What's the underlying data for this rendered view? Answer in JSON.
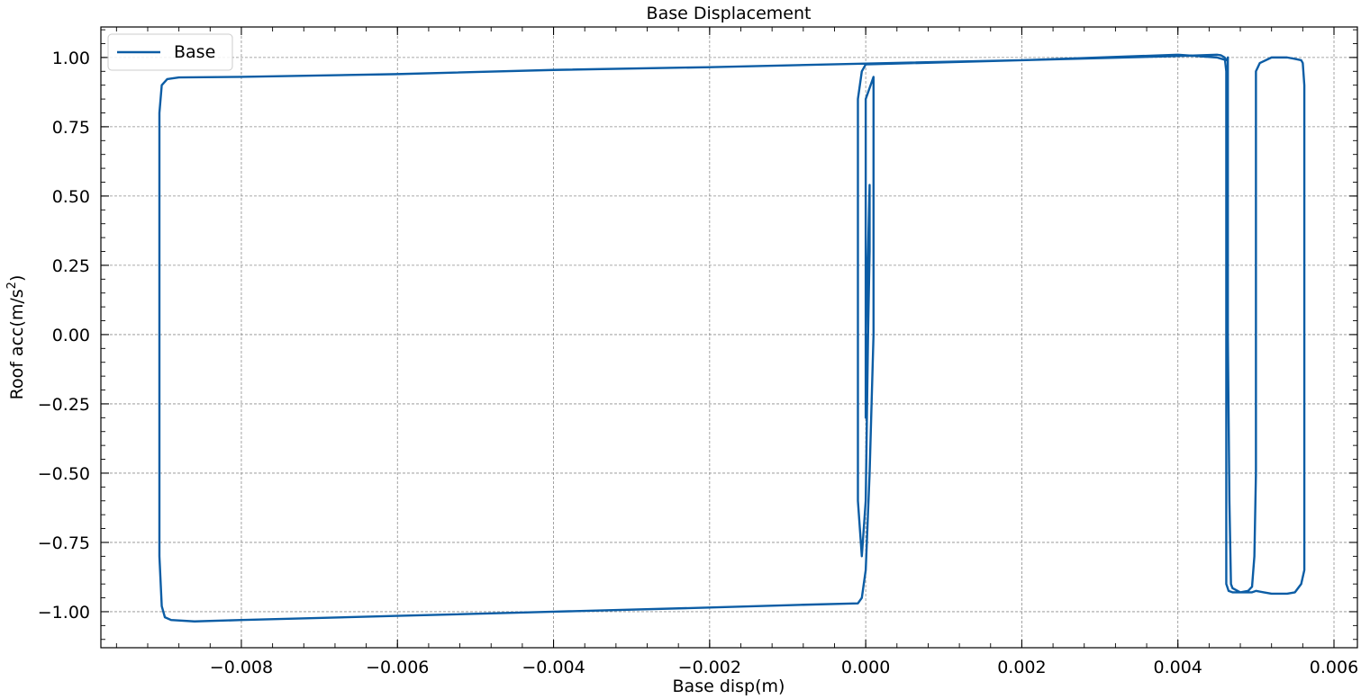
{
  "chart_data": {
    "type": "line",
    "title": "Base Displacement",
    "xlabel": "Base disp(m)",
    "ylabel_main": "Roof acc(m/s",
    "ylabel_sup": "2",
    "ylabel_close": ")",
    "xlim": [
      -0.0098,
      0.0063
    ],
    "ylim": [
      -1.13,
      1.11
    ],
    "grid": true,
    "legend_position": "top-left",
    "color": "#0c5da5",
    "xticks": [
      -0.008,
      -0.006,
      -0.004,
      -0.002,
      0.0,
      0.002,
      0.004,
      0.006
    ],
    "xtick_labels": [
      "−0.008",
      "−0.006",
      "−0.004",
      "−0.002",
      "0.000",
      "0.002",
      "0.004",
      "0.006"
    ],
    "yticks": [
      1.0,
      0.75,
      0.5,
      0.25,
      0.0,
      -0.25,
      -0.5,
      -0.75,
      -1.0
    ],
    "ytick_labels": [
      "1.00",
      "0.75",
      "0.50",
      "0.25",
      "0.00",
      "−0.25",
      "−0.50",
      "−0.75",
      "−1.00"
    ],
    "series": [
      {
        "name": "Base",
        "x": [
          0.0,
          0.0,
          0.0,
          0.0001,
          0.0001,
          0.0001,
          0.0001,
          5e-05,
          0.0,
          -5e-05,
          -0.0001,
          -0.0008,
          -0.002,
          -0.004,
          -0.006,
          -0.008,
          -0.0086,
          -0.0089,
          -0.00898,
          -0.00902,
          -0.00905,
          -0.00905,
          -0.00905,
          -0.00902,
          -0.00895,
          -0.0088,
          -0.008,
          -0.006,
          -0.004,
          -0.002,
          0.0,
          0.002,
          0.004,
          0.0045,
          0.00455,
          0.0046,
          0.00462,
          0.00462,
          0.00462,
          0.00462,
          0.00462,
          0.00465,
          0.0047,
          0.0048,
          0.0049,
          0.00495,
          0.00498,
          0.005,
          0.005,
          0.005,
          0.005,
          0.005,
          0.00505,
          0.0052,
          0.0054,
          0.0055,
          0.00558,
          0.0056,
          0.00562,
          0.00562,
          0.00562,
          0.00562,
          0.00562,
          0.00558,
          0.0055,
          0.0054,
          0.0052,
          0.0051,
          0.005,
          0.00495,
          0.0048,
          0.0047,
          0.00468,
          0.00466,
          0.00464,
          0.00464,
          0.00464,
          0.00464,
          0.00464,
          0.00462,
          0.0045,
          0.004,
          0.002,
          0.0,
          -5e-05,
          -0.0001,
          -0.0001,
          -0.0001,
          -5e-05,
          0.0,
          3e-05,
          5e-05,
          5e-05,
          3e-05,
          0.0,
          0.0,
          2e-05,
          2e-05
        ],
        "y": [
          0.0,
          0.5,
          0.85,
          0.93,
          0.9,
          0.5,
          0.0,
          -0.5,
          -0.85,
          -0.95,
          -0.97,
          -0.975,
          -0.985,
          -1.0,
          -1.015,
          -1.03,
          -1.035,
          -1.03,
          -1.02,
          -0.98,
          -0.8,
          0.0,
          0.8,
          0.9,
          0.922,
          0.928,
          0.93,
          0.94,
          0.955,
          0.965,
          0.978,
          0.99,
          1.005,
          1.01,
          1.008,
          1.0,
          0.95,
          0.6,
          0.0,
          -0.6,
          -0.9,
          -0.925,
          -0.93,
          -0.93,
          -0.925,
          -0.91,
          -0.8,
          -0.5,
          0.0,
          0.5,
          0.8,
          0.95,
          0.98,
          1.0,
          1.0,
          0.995,
          0.99,
          0.98,
          0.9,
          0.5,
          0.0,
          -0.5,
          -0.85,
          -0.9,
          -0.93,
          -0.935,
          -0.935,
          -0.93,
          -0.925,
          -0.93,
          -0.93,
          -0.915,
          -0.9,
          -0.6,
          0.0,
          0.5,
          0.95,
          1.0,
          1.0,
          0.99,
          1.0,
          1.01,
          0.99,
          0.975,
          0.95,
          0.85,
          0.0,
          -0.6,
          -0.8,
          -0.6,
          0.0,
          0.3,
          0.54,
          0.3,
          0.0,
          -0.3,
          -0.1,
          0.0
        ]
      }
    ]
  }
}
